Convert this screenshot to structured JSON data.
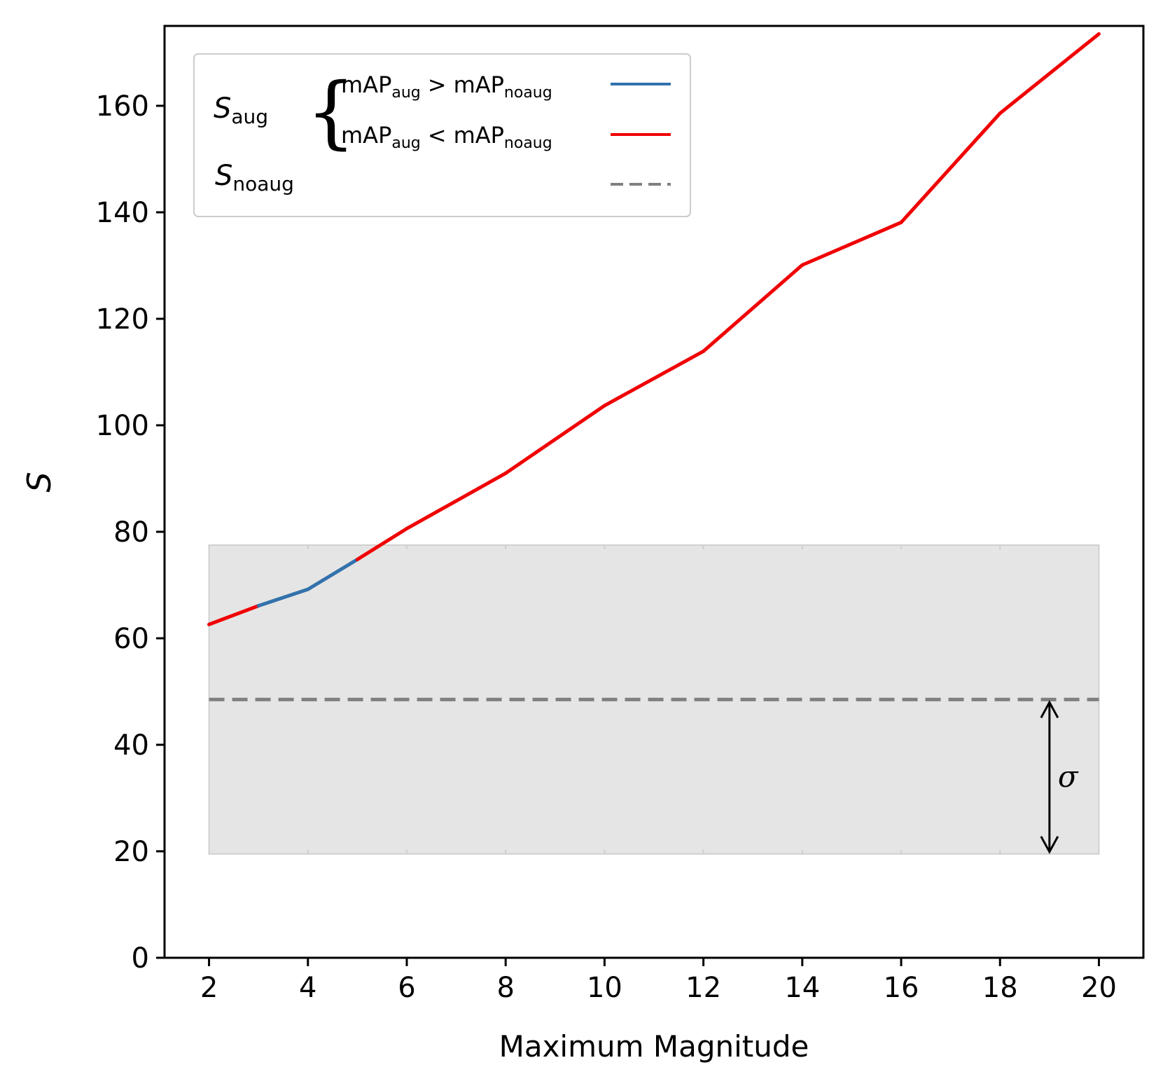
{
  "chart_data": {
    "type": "line",
    "xlabel": "Maximum Magnitude",
    "ylabel": "S",
    "xlim": [
      1.1,
      20.9
    ],
    "ylim": [
      0,
      175
    ],
    "x_ticks": [
      "2",
      "4",
      "6",
      "8",
      "10",
      "12",
      "14",
      "16",
      "18",
      "20"
    ],
    "y_ticks": [
      "0",
      "20",
      "40",
      "60",
      "80",
      "100",
      "120",
      "140",
      "160"
    ],
    "x_tick_values": [
      2,
      4,
      6,
      8,
      10,
      12,
      14,
      16,
      18,
      20
    ],
    "y_tick_values": [
      0,
      20,
      40,
      60,
      80,
      100,
      120,
      140,
      160
    ],
    "grid": false,
    "legend_position": "top-left",
    "series": [
      {
        "name": "S_aug",
        "x": [
          2,
          3,
          4,
          5,
          6,
          8,
          10,
          12,
          14,
          16,
          18,
          20
        ],
        "y": [
          62.6,
          66.1,
          69.2,
          74.8,
          80.6,
          91.0,
          103.7,
          113.9,
          130.1,
          138.1,
          158.6,
          173.5
        ],
        "segment_condition": [
          "lower",
          "higher",
          "higher",
          "lower",
          "lower",
          "lower",
          "lower",
          "lower",
          "lower",
          "lower",
          "lower"
        ],
        "colors": {
          "higher": "#3272ac",
          "lower": "#f00000"
        }
      },
      {
        "name": "S_noaug",
        "x": [
          2,
          20
        ],
        "y": [
          48.5,
          48.5
        ],
        "color": "#808080",
        "style": "dashed"
      }
    ],
    "sigma_band": {
      "x": [
        2,
        20
      ],
      "y_low": 19.5,
      "y_high": 77.5,
      "color": "#e5e5e5",
      "label": "σ",
      "arrow_x": 19
    },
    "legend": {
      "saug_label": {
        "base": "S",
        "sub": "aug"
      },
      "snoaug_label": {
        "base": "S",
        "sub": "noaug"
      },
      "brace": "{",
      "higher": {
        "a": "mAP",
        "a_sub": "aug",
        "op": ">",
        "b": "mAP",
        "b_sub": "noaug"
      },
      "lower": {
        "a": "mAP",
        "a_sub": "aug",
        "op": "<",
        "b": "mAP",
        "b_sub": "noaug"
      }
    }
  }
}
